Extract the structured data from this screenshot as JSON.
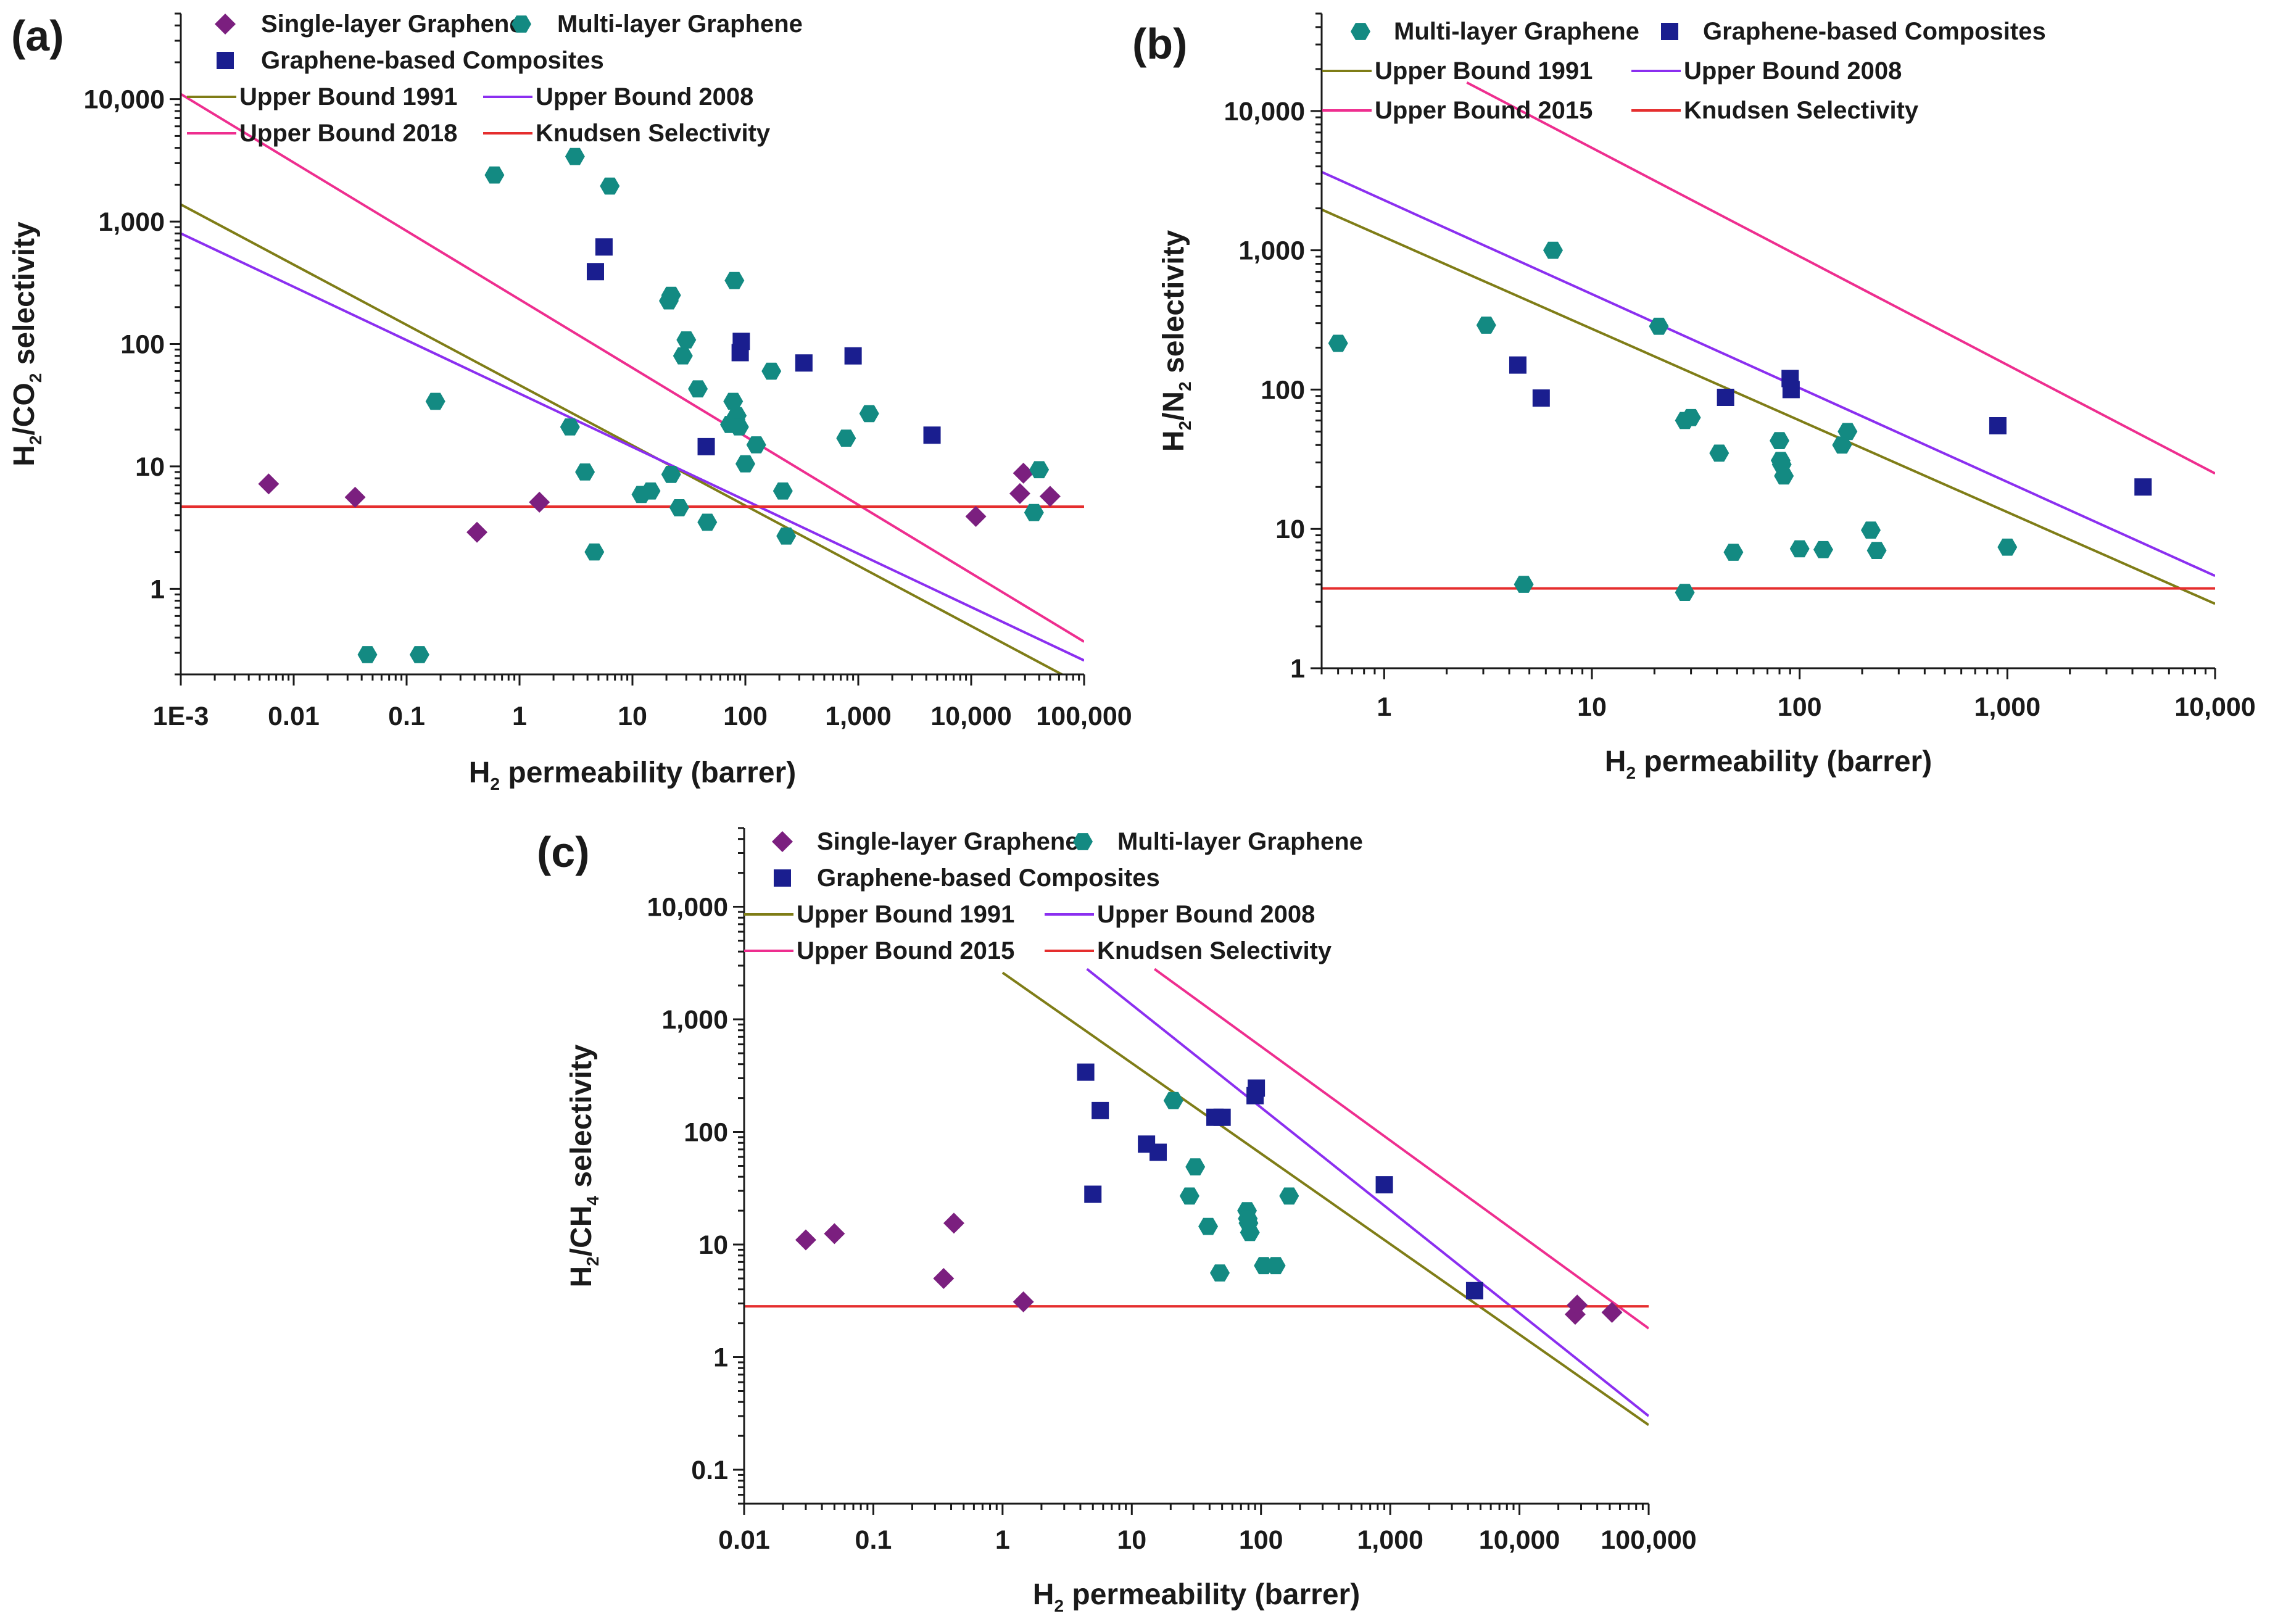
{
  "chart_data": [
    {
      "type": "scatter",
      "panel_label": "(a)",
      "xlabel": {
        "main": "H",
        "sub": "2",
        "rest": " permeability (barrer)"
      },
      "ylabel": {
        "main": "H",
        "sub1": "2",
        "mid": "/CO",
        "sub2": "2",
        "rest": " selectivity"
      },
      "x_scale": "log",
      "y_scale": "log",
      "xlim": [
        0.001,
        100000
      ],
      "ylim": [
        0.2,
        50000
      ],
      "x_ticks": [
        {
          "v": 0.001,
          "label": "1E-3"
        },
        {
          "v": 0.01,
          "label": "0.01"
        },
        {
          "v": 0.1,
          "label": "0.1"
        },
        {
          "v": 1,
          "label": "1"
        },
        {
          "v": 10,
          "label": "10"
        },
        {
          "v": 100,
          "label": "100"
        },
        {
          "v": 1000,
          "label": "1,000"
        },
        {
          "v": 10000,
          "label": "10,000"
        },
        {
          "v": 100000,
          "label": "100,000"
        }
      ],
      "y_ticks": [
        {
          "v": 1,
          "label": "1"
        },
        {
          "v": 10,
          "label": "10"
        },
        {
          "v": 100,
          "label": "100"
        },
        {
          "v": 1000,
          "label": "1,000"
        },
        {
          "v": 10000,
          "label": "10,000"
        }
      ],
      "series": [
        {
          "name": "Single-layer Graphene",
          "marker": "diamond",
          "color": "#7b1f7f",
          "points": [
            [
              0.006,
              7.2
            ],
            [
              0.035,
              5.6
            ],
            [
              0.42,
              2.9
            ],
            [
              1.5,
              5.1
            ],
            [
              11000,
              3.9
            ],
            [
              27000,
              6.0
            ],
            [
              29000,
              8.8
            ],
            [
              50000,
              5.7
            ]
          ]
        },
        {
          "name": "Multi-layer Graphene",
          "marker": "hexagon",
          "color": "#138a82",
          "points": [
            [
              0.045,
              0.29
            ],
            [
              0.13,
              0.29
            ],
            [
              0.18,
              34
            ],
            [
              0.6,
              2400
            ],
            [
              2.8,
              21
            ],
            [
              3.1,
              3400
            ],
            [
              3.8,
              9
            ],
            [
              4.6,
              2
            ],
            [
              6.3,
              1950
            ],
            [
              12,
              5.9
            ],
            [
              14.5,
              6.3
            ],
            [
              21,
              225
            ],
            [
              22,
              250
            ],
            [
              22,
              8.6
            ],
            [
              26,
              4.6
            ],
            [
              28,
              80
            ],
            [
              30,
              108
            ],
            [
              38,
              43
            ],
            [
              46,
              3.5
            ],
            [
              73,
              22
            ],
            [
              78,
              34
            ],
            [
              80,
              330
            ],
            [
              82,
              24
            ],
            [
              84,
              26
            ],
            [
              88,
              21
            ],
            [
              100,
              10.5
            ],
            [
              125,
              15
            ],
            [
              170,
              60
            ],
            [
              215,
              6.3
            ],
            [
              230,
              2.7
            ],
            [
              780,
              17
            ],
            [
              1250,
              27
            ],
            [
              36000,
              4.2
            ],
            [
              40000,
              9.4
            ]
          ]
        },
        {
          "name": "Graphene-based Composites",
          "marker": "square",
          "color": "#1a1e8f",
          "points": [
            [
              4.7,
              390
            ],
            [
              5.6,
              620
            ],
            [
              45,
              14.5
            ],
            [
              90,
              85
            ],
            [
              92,
              105
            ],
            [
              330,
              70
            ],
            [
              900,
              80
            ],
            [
              4500,
              18
            ]
          ]
        }
      ],
      "upper_bounds": [
        {
          "name": "Upper Bound 1991",
          "color": "#7f7d17",
          "x": [
            0.001,
            100000
          ],
          "y": [
            1380,
            0.16
          ]
        },
        {
          "name": "Upper Bound 2008",
          "color": "#8b2ff0",
          "x": [
            0.001,
            100000
          ],
          "y": [
            800,
            0.26
          ]
        },
        {
          "name": "Upper Bound 2018",
          "color": "#ee2e8f",
          "x": [
            0.001,
            100000
          ],
          "y": [
            11000,
            0.37
          ]
        },
        {
          "name": "Knudsen Selectivity",
          "color": "#e52e2e",
          "x": [
            0.001,
            100000
          ],
          "y": [
            4.69,
            4.69
          ]
        }
      ],
      "legend": {
        "rows": [
          [
            "Single-layer Graphene",
            "Multi-layer Graphene"
          ],
          [
            "Graphene-based Composites"
          ],
          [
            "Upper Bound 1991",
            "Upper Bound 2008"
          ],
          [
            "Upper Bound 2018",
            "Knudsen Selectivity"
          ]
        ]
      }
    },
    {
      "type": "scatter",
      "panel_label": "(b)",
      "xlabel": {
        "main": "H",
        "sub": "2",
        "rest": " permeability (barrer)"
      },
      "ylabel": {
        "main": "H",
        "sub1": "2",
        "mid": "/N",
        "sub2": "2",
        "rest": " selectivity"
      },
      "x_scale": "log",
      "y_scale": "log",
      "xlim": [
        0.5,
        10000
      ],
      "ylim": [
        1,
        50000
      ],
      "x_ticks": [
        {
          "v": 1,
          "label": "1"
        },
        {
          "v": 10,
          "label": "10"
        },
        {
          "v": 100,
          "label": "100"
        },
        {
          "v": 1000,
          "label": "1,000"
        },
        {
          "v": 10000,
          "label": "10,000"
        }
      ],
      "y_ticks": [
        {
          "v": 1,
          "label": "1"
        },
        {
          "v": 10,
          "label": "10"
        },
        {
          "v": 100,
          "label": "100"
        },
        {
          "v": 1000,
          "label": "1,000"
        },
        {
          "v": 10000,
          "label": "10,000"
        }
      ],
      "series": [
        {
          "name": "Multi-layer Graphene",
          "marker": "hexagon",
          "color": "#138a82",
          "points": [
            [
              0.6,
              215
            ],
            [
              3.1,
              290
            ],
            [
              4.7,
              4
            ],
            [
              6.5,
              1000
            ],
            [
              21,
              285
            ],
            [
              28,
              3.5
            ],
            [
              28,
              60
            ],
            [
              30,
              63
            ],
            [
              41,
              35
            ],
            [
              48,
              6.8
            ],
            [
              80,
              43
            ],
            [
              81,
              31
            ],
            [
              82,
              29
            ],
            [
              84,
              24
            ],
            [
              100,
              7.2
            ],
            [
              130,
              7.1
            ],
            [
              160,
              40
            ],
            [
              170,
              50
            ],
            [
              220,
              9.8
            ],
            [
              235,
              7
            ],
            [
              1000,
              7.4
            ]
          ]
        },
        {
          "name": "Graphene-based Composites",
          "marker": "square",
          "color": "#1a1e8f",
          "points": [
            [
              4.4,
              150
            ],
            [
              5.7,
              87
            ],
            [
              44,
              88
            ],
            [
              90,
              120
            ],
            [
              91,
              100
            ],
            [
              900,
              55
            ],
            [
              4500,
              20
            ]
          ]
        }
      ],
      "upper_bounds": [
        {
          "name": "Upper Bound 1991",
          "color": "#7f7d17",
          "x": [
            0.5,
            10000
          ],
          "y": [
            1960,
            2.9
          ]
        },
        {
          "name": "Upper Bound 2008",
          "color": "#8b2ff0",
          "x": [
            0.5,
            10000
          ],
          "y": [
            3650,
            4.6
          ]
        },
        {
          "name": "Upper Bound 2015",
          "color": "#ee2e8f",
          "x": [
            2.5,
            10000
          ],
          "y": [
            16000,
            25
          ]
        },
        {
          "name": "Knudsen Selectivity",
          "color": "#e52e2e",
          "x": [
            0.5,
            10000
          ],
          "y": [
            3.74,
            3.74
          ]
        }
      ],
      "legend": {
        "rows": [
          [
            "Multi-layer Graphene",
            "Graphene-based Composites"
          ],
          [
            "Upper Bound 1991",
            "Upper Bound 2008"
          ],
          [
            "Upper Bound 2015",
            "Knudsen Selectivity"
          ]
        ]
      }
    },
    {
      "type": "scatter",
      "panel_label": "(c)",
      "xlabel": {
        "main": "H",
        "sub": "2",
        "rest": " permeability (barrer)"
      },
      "ylabel": {
        "main": "H",
        "sub1": "2",
        "mid": "/CH",
        "sub2": "4",
        "rest": " selectivity"
      },
      "x_scale": "log",
      "y_scale": "log",
      "xlim": [
        0.01,
        100000
      ],
      "ylim": [
        0.05,
        50000
      ],
      "x_ticks": [
        {
          "v": 0.01,
          "label": "0.01"
        },
        {
          "v": 0.1,
          "label": "0.1"
        },
        {
          "v": 1,
          "label": "1"
        },
        {
          "v": 10,
          "label": "10"
        },
        {
          "v": 100,
          "label": "100"
        },
        {
          "v": 1000,
          "label": "1,000"
        },
        {
          "v": 10000,
          "label": "10,000"
        },
        {
          "v": 100000,
          "label": "100,000"
        }
      ],
      "y_ticks": [
        {
          "v": 0.1,
          "label": "0.1"
        },
        {
          "v": 1,
          "label": "1"
        },
        {
          "v": 10,
          "label": "10"
        },
        {
          "v": 100,
          "label": "100"
        },
        {
          "v": 1000,
          "label": "1,000"
        },
        {
          "v": 10000,
          "label": "10,000"
        }
      ],
      "series": [
        {
          "name": "Single-layer Graphene",
          "marker": "diamond",
          "color": "#7b1f7f",
          "points": [
            [
              0.03,
              11
            ],
            [
              0.05,
              12.5
            ],
            [
              0.35,
              5
            ],
            [
              0.42,
              15.5
            ],
            [
              1.45,
              3.1
            ],
            [
              27000,
              2.4
            ],
            [
              28000,
              2.9
            ],
            [
              52000,
              2.5
            ]
          ]
        },
        {
          "name": "Multi-layer Graphene",
          "marker": "hexagon",
          "color": "#138a82",
          "points": [
            [
              21,
              190
            ],
            [
              28,
              27
            ],
            [
              31,
              49
            ],
            [
              39,
              14.5
            ],
            [
              48,
              5.6
            ],
            [
              78,
              20
            ],
            [
              79,
              17
            ],
            [
              80,
              15.5
            ],
            [
              82,
              12.8
            ],
            [
              105,
              6.5
            ],
            [
              130,
              6.5
            ],
            [
              165,
              27
            ]
          ]
        },
        {
          "name": "Graphene-based Composites",
          "marker": "square",
          "color": "#1a1e8f",
          "points": [
            [
              4.4,
              340
            ],
            [
              5,
              28
            ],
            [
              5.7,
              155
            ],
            [
              13,
              78
            ],
            [
              16,
              66
            ],
            [
              44,
              135
            ],
            [
              50,
              135
            ],
            [
              90,
              210
            ],
            [
              92,
              245
            ],
            [
              900,
              34
            ],
            [
              4500,
              3.9
            ]
          ]
        }
      ],
      "upper_bounds": [
        {
          "name": "Upper Bound 1991",
          "color": "#7f7d17",
          "x": [
            1,
            100000
          ],
          "y": [
            2600,
            0.25
          ]
        },
        {
          "name": "Upper Bound 2008",
          "color": "#8b2ff0",
          "x": [
            4.5,
            100000
          ],
          "y": [
            2800,
            0.3
          ]
        },
        {
          "name": "Upper Bound 2015",
          "color": "#ee2e8f",
          "x": [
            15,
            100000
          ],
          "y": [
            2800,
            1.8
          ]
        },
        {
          "name": "Knudsen Selectivity",
          "color": "#e52e2e",
          "x": [
            0.01,
            100000
          ],
          "y": [
            2.83,
            2.83
          ]
        }
      ],
      "legend": {
        "rows": [
          [
            "Single-layer Graphene",
            "Multi-layer Graphene"
          ],
          [
            "Graphene-based Composites"
          ],
          [
            "Upper Bound 1991",
            "Upper Bound 2008"
          ],
          [
            "Upper Bound 2015",
            "Knudsen Selectivity"
          ]
        ]
      }
    }
  ]
}
